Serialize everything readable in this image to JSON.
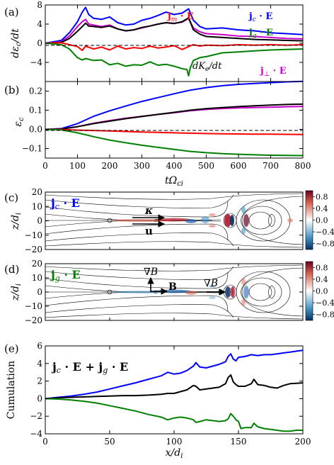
{
  "chart_data": [
    {
      "type": "line",
      "panel_label": "(a)",
      "ylabel": "dε_c/dt",
      "xlim": [
        0,
        800
      ],
      "ylim": [
        -8,
        8
      ],
      "yticks": [
        -8,
        -4,
        0,
        4,
        8
      ],
      "ytick_labels": [
        "",
        "−4",
        "0",
        "4",
        "8"
      ],
      "legend_labels": [
        "j_m · E",
        "j_c · E",
        "j_g · E",
        "dK_e/dt",
        "j_⊥ · E"
      ],
      "colors": {
        "jm": "#ff0000",
        "jc": "#0000ff",
        "jg": "#008000",
        "dke": "#000000",
        "jperp": "#cc00cc"
      },
      "series": [
        {
          "name": "j_c · E",
          "color": "#0000ff",
          "x": [
            0,
            50,
            75,
            100,
            115,
            125,
            135,
            150,
            175,
            200,
            225,
            250,
            275,
            300,
            325,
            350,
            375,
            400,
            425,
            445,
            460,
            480,
            500,
            550,
            600,
            650,
            700,
            750,
            800
          ],
          "y": [
            0,
            0.6,
            2.2,
            4.5,
            6.5,
            7.5,
            6.0,
            5.2,
            5.0,
            5.5,
            4.3,
            3.8,
            4.0,
            4.8,
            5.2,
            5.8,
            6.5,
            6.0,
            6.3,
            7.2,
            4.8,
            3.5,
            3.0,
            3.2,
            2.8,
            2.6,
            2.2,
            2.0,
            1.8
          ]
        },
        {
          "name": "j_⊥ · E",
          "color": "#cc00cc",
          "x": [
            0,
            50,
            75,
            100,
            115,
            125,
            135,
            150,
            175,
            200,
            225,
            250,
            275,
            300,
            325,
            350,
            375,
            400,
            425,
            445,
            460,
            480,
            500,
            550,
            600,
            650,
            700,
            750,
            800
          ],
          "y": [
            0,
            0.3,
            1.5,
            3.5,
            4.5,
            5.0,
            4.0,
            3.8,
            3.5,
            3.8,
            3.0,
            2.6,
            2.8,
            3.2,
            3.6,
            4.0,
            4.3,
            4.2,
            4.4,
            5.2,
            3.2,
            2.4,
            2.0,
            1.8,
            1.5,
            1.4,
            1.2,
            1.0,
            0.9
          ]
        },
        {
          "name": "dK_e/dt",
          "color": "#000000",
          "x": [
            0,
            50,
            75,
            100,
            115,
            125,
            135,
            150,
            175,
            200,
            225,
            250,
            275,
            300,
            325,
            350,
            375,
            400,
            425,
            445,
            460,
            480,
            500,
            550,
            600,
            650,
            700,
            750,
            800
          ],
          "y": [
            0,
            0.2,
            1.0,
            2.5,
            3.5,
            4.2,
            3.6,
            3.5,
            3.3,
            3.6,
            3.0,
            2.6,
            2.8,
            3.3,
            3.6,
            4.0,
            4.3,
            4.1,
            4.5,
            5.3,
            2.8,
            1.9,
            1.4,
            1.2,
            1.0,
            0.8,
            0.7,
            0.6,
            0.5
          ]
        },
        {
          "name": "j_m · E",
          "color": "#ff0000",
          "x": [
            0,
            50,
            75,
            100,
            115,
            125,
            150,
            175,
            200,
            225,
            250,
            275,
            300,
            325,
            350,
            375,
            400,
            425,
            445,
            460,
            480,
            500,
            550,
            600,
            650,
            700,
            750,
            800
          ],
          "y": [
            0,
            0.1,
            -0.3,
            -0.7,
            -1.5,
            -0.6,
            -1.2,
            -0.8,
            -1.4,
            -0.6,
            -1.2,
            -0.9,
            -1.1,
            -0.6,
            -1.0,
            -0.8,
            -0.5,
            -1.3,
            -0.7,
            -0.3,
            -0.6,
            -0.4,
            -0.5,
            -0.3,
            -0.4,
            -0.3,
            -0.4,
            -0.3
          ]
        },
        {
          "name": "j_g · E",
          "color": "#008000",
          "x": [
            0,
            50,
            75,
            100,
            115,
            125,
            150,
            175,
            200,
            225,
            250,
            275,
            300,
            325,
            350,
            375,
            400,
            425,
            440,
            445,
            450,
            460,
            480,
            500,
            550,
            600,
            650,
            700,
            750,
            800
          ],
          "y": [
            0,
            -0.3,
            -1.2,
            -3.0,
            -3.5,
            -3.2,
            -3.6,
            -3.5,
            -4.5,
            -4.2,
            -4.8,
            -4.5,
            -4.6,
            -3.9,
            -4.6,
            -4.4,
            -4.8,
            -5.3,
            -5.5,
            -6.8,
            -5.2,
            -3.6,
            -3.0,
            -2.8,
            -2.0,
            -1.8,
            -1.6,
            -1.4,
            -1.3,
            -1.2
          ]
        }
      ]
    },
    {
      "type": "line",
      "panel_label": "(b)",
      "ylabel": "ε_c",
      "xlabel": "tΩ_ci",
      "xlim": [
        0,
        800
      ],
      "ylim": [
        -0.15,
        0.25
      ],
      "xticks": [
        0,
        100,
        200,
        300,
        400,
        500,
        600,
        700,
        800
      ],
      "yticks": [
        -0.1,
        0.0,
        0.1,
        0.2
      ],
      "ytick_labels": [
        "−0.1",
        "0.0",
        "0.1",
        "0.2"
      ],
      "series": [
        {
          "name": "j_c · E",
          "color": "#0000ff",
          "x": [
            0,
            50,
            100,
            150,
            200,
            250,
            300,
            350,
            400,
            450,
            500,
            550,
            600,
            650,
            700,
            750,
            800
          ],
          "y": [
            0,
            0.004,
            0.03,
            0.068,
            0.097,
            0.122,
            0.146,
            0.166,
            0.186,
            0.205,
            0.218,
            0.228,
            0.235,
            0.24,
            0.244,
            0.248,
            0.251
          ]
        },
        {
          "name": "j_⊥ · E",
          "color": "#cc00cc",
          "x": [
            0,
            50,
            100,
            150,
            200,
            250,
            300,
            350,
            400,
            450,
            500,
            550,
            600,
            650,
            700,
            750,
            800
          ],
          "y": [
            0,
            0.002,
            0.014,
            0.032,
            0.046,
            0.058,
            0.068,
            0.078,
            0.087,
            0.097,
            0.104,
            0.109,
            0.112,
            0.114,
            0.116,
            0.118,
            0.12
          ]
        },
        {
          "name": "dK_e/dt",
          "color": "#000000",
          "x": [
            0,
            50,
            100,
            150,
            200,
            250,
            300,
            350,
            400,
            450,
            500,
            550,
            600,
            650,
            700,
            750,
            800
          ],
          "y": [
            0,
            0.002,
            0.014,
            0.03,
            0.043,
            0.056,
            0.067,
            0.078,
            0.089,
            0.1,
            0.108,
            0.114,
            0.119,
            0.123,
            0.127,
            0.13,
            0.132
          ]
        },
        {
          "name": "j_m · E",
          "color": "#ff0000",
          "x": [
            0,
            50,
            100,
            150,
            200,
            250,
            300,
            350,
            400,
            450,
            500,
            550,
            600,
            650,
            700,
            750,
            800
          ],
          "y": [
            0,
            -0.001,
            -0.004,
            -0.006,
            -0.008,
            -0.011,
            -0.014,
            -0.016,
            -0.018,
            -0.02,
            -0.022,
            -0.023,
            -0.024,
            -0.025,
            -0.025,
            -0.026,
            -0.027
          ]
        },
        {
          "name": "j_g · E",
          "color": "#008000",
          "x": [
            0,
            50,
            100,
            150,
            200,
            250,
            300,
            350,
            400,
            450,
            500,
            550,
            600,
            650,
            700,
            750,
            800
          ],
          "y": [
            0,
            -0.003,
            -0.018,
            -0.038,
            -0.056,
            -0.07,
            -0.083,
            -0.094,
            -0.105,
            -0.115,
            -0.122,
            -0.127,
            -0.13,
            -0.133,
            -0.135,
            -0.136,
            -0.137
          ]
        }
      ]
    },
    {
      "type": "heatmap",
      "panel_label": "(c)",
      "field_label": "j_c · E",
      "ylabel": "z/d_i",
      "xlim": [
        0,
        200
      ],
      "ylim": [
        -20,
        20
      ],
      "yticks": [
        -20,
        -10,
        0,
        10,
        20
      ],
      "colorbar_range": [
        -1,
        1
      ],
      "colorbar_ticks": [
        0.8,
        0.4,
        0.0,
        -0.4,
        -0.8
      ],
      "colorbar_tick_labels": [
        "0.8",
        "0.4",
        "0.0",
        "−0.4",
        "−0.8"
      ],
      "annotations": [
        "κ",
        "u"
      ]
    },
    {
      "type": "heatmap",
      "panel_label": "(d)",
      "field_label": "j_g · E",
      "ylabel": "z/d_i",
      "xlim": [
        0,
        200
      ],
      "ylim": [
        -20,
        20
      ],
      "yticks": [
        -20,
        -10,
        0,
        10,
        20
      ],
      "colorbar_range": [
        -1,
        1
      ],
      "colorbar_ticks": [
        0.8,
        0.4,
        0.0,
        -0.4,
        -0.8
      ],
      "colorbar_tick_labels": [
        "0.8",
        "0.4",
        "0.0",
        "−0.4",
        "−0.8"
      ],
      "annotations": [
        "∇B",
        "B",
        "∇B"
      ]
    },
    {
      "type": "line",
      "panel_label": "(e)",
      "title": "j_c · E + j_g · E",
      "ylabel": "Cumulation",
      "xlabel": "x/d_i",
      "xlim": [
        0,
        200
      ],
      "ylim": [
        -4,
        6
      ],
      "xticks": [
        0,
        50,
        100,
        150,
        200
      ],
      "yticks": [
        -4,
        -2,
        0,
        2,
        4,
        6
      ],
      "ytick_labels": [
        "−4",
        "−2",
        "0",
        "2",
        "4",
        "6"
      ],
      "series": [
        {
          "name": "j_c · E",
          "color": "#0000ff",
          "x": [
            0,
            10,
            20,
            30,
            40,
            50,
            60,
            70,
            80,
            90,
            95,
            100,
            105,
            110,
            115,
            117,
            120,
            125,
            130,
            135,
            140,
            142,
            144,
            146,
            148,
            150,
            155,
            160,
            165,
            170,
            175,
            180,
            185,
            190,
            195,
            200
          ],
          "y": [
            0,
            0.15,
            0.3,
            0.5,
            0.75,
            1.1,
            1.45,
            1.8,
            2.2,
            2.6,
            3.0,
            2.8,
            2.9,
            3.2,
            3.7,
            4.1,
            3.6,
            3.5,
            3.7,
            3.9,
            4.2,
            4.8,
            5.1,
            4.5,
            4.3,
            4.7,
            4.8,
            5.0,
            4.9,
            5.0,
            5.0,
            5.1,
            5.2,
            5.3,
            5.4,
            5.5
          ]
        },
        {
          "name": "sum",
          "color": "#000000",
          "x": [
            0,
            10,
            20,
            30,
            40,
            50,
            60,
            70,
            80,
            90,
            95,
            100,
            105,
            110,
            115,
            117,
            120,
            125,
            130,
            135,
            140,
            142,
            144,
            146,
            148,
            150,
            155,
            160,
            162,
            165,
            170,
            175,
            180,
            185,
            190,
            195,
            200
          ],
          "y": [
            0,
            0.1,
            0.15,
            0.2,
            0.25,
            0.3,
            0.35,
            0.35,
            0.4,
            0.5,
            0.6,
            0.6,
            0.8,
            1.0,
            1.5,
            1.4,
            1.0,
            1.1,
            1.2,
            1.3,
            1.7,
            2.4,
            2.7,
            1.9,
            1.6,
            1.4,
            1.4,
            1.7,
            2.2,
            1.6,
            1.5,
            1.3,
            1.2,
            1.5,
            1.7,
            1.75,
            1.8
          ]
        },
        {
          "name": "j_g · E",
          "color": "#008000",
          "x": [
            0,
            10,
            20,
            30,
            40,
            50,
            60,
            70,
            80,
            90,
            95,
            100,
            105,
            110,
            115,
            117,
            120,
            125,
            130,
            135,
            140,
            142,
            144,
            146,
            148,
            150,
            152,
            155,
            160,
            162,
            165,
            170,
            175,
            180,
            185,
            190,
            195,
            200
          ],
          "y": [
            0,
            -0.05,
            -0.15,
            -0.3,
            -0.5,
            -0.8,
            -1.1,
            -1.4,
            -1.8,
            -2.1,
            -2.4,
            -2.2,
            -2.1,
            -2.2,
            -2.4,
            -2.7,
            -2.6,
            -2.4,
            -2.5,
            -2.6,
            -2.5,
            -2.3,
            -1.7,
            -2.0,
            -2.4,
            -2.6,
            -3.4,
            -3.3,
            -3.3,
            -2.8,
            -3.2,
            -3.4,
            -3.5,
            -3.6,
            -3.7,
            -3.7,
            -3.6,
            -3.6
          ]
        }
      ]
    }
  ]
}
